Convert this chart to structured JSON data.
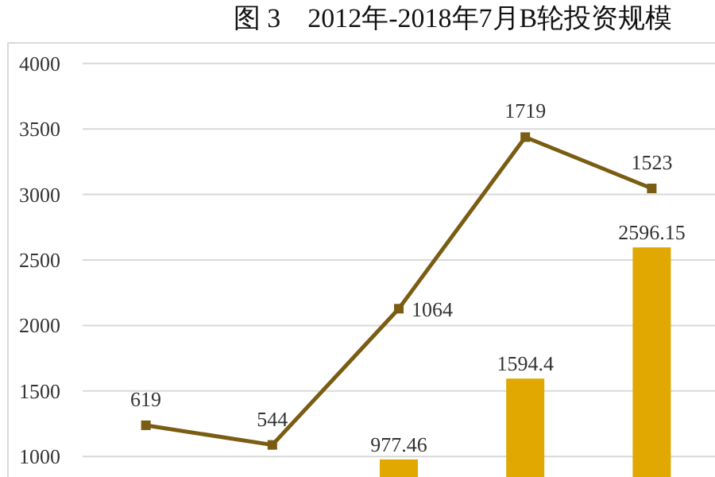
{
  "chart_data": {
    "type": "bar",
    "title": "图 3    2012年-2018年7月B轮投资规模",
    "categories": [
      null,
      null,
      null,
      null,
      null
    ],
    "series": [
      {
        "color": "#e0a800",
        "values": [
          null,
          null,
          977.46,
          1594.4,
          2596.15
        ]
      },
      {
        "type": "line",
        "axis": "y2",
        "color": "#7a5c12",
        "values": [
          619,
          544,
          1064,
          1719,
          1523
        ]
      }
    ],
    "ylim": [
      843,
      4157
    ],
    "yticks": [
      1000,
      1500,
      2000,
      2500,
      3000,
      3500,
      4000
    ],
    "y2lim": [
      421.5,
      2078.5
    ],
    "grid": "y",
    "data_labels": true,
    "marker": "square",
    "line_style": "solid"
  }
}
